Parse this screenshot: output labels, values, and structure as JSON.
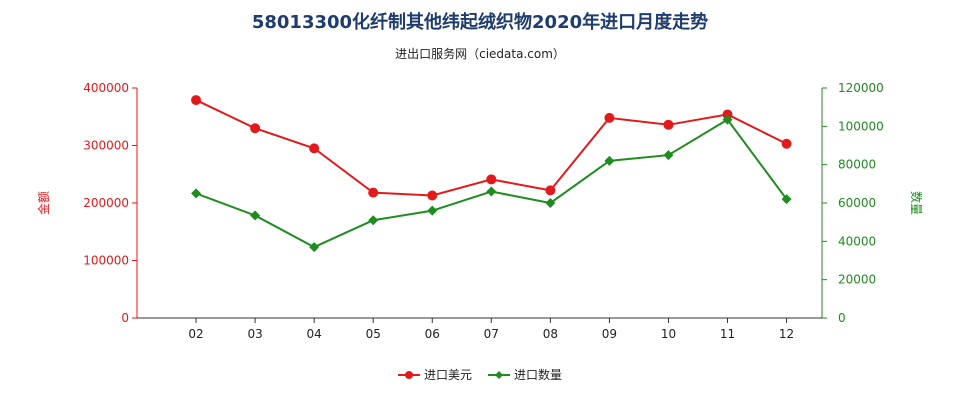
{
  "chart_data": {
    "type": "line",
    "title": "58013300化纤制其他纬起绒织物2020年进口月度走势",
    "subtitle": "进出口服务网（ciedata.com）",
    "categories": [
      "02",
      "03",
      "04",
      "05",
      "06",
      "07",
      "08",
      "09",
      "10",
      "11",
      "12"
    ],
    "y_left": {
      "label": "金额",
      "ylim": [
        0,
        400000
      ],
      "ticks": [
        "0",
        "100000",
        "200000",
        "300000",
        "400000"
      ],
      "color": "#e31a1c"
    },
    "y_right": {
      "label": "数量",
      "ylim": [
        0,
        120000
      ],
      "ticks": [
        "0",
        "20000",
        "40000",
        "60000",
        "80000",
        "100000",
        "120000"
      ],
      "color": "#1f8c1f"
    },
    "series": [
      {
        "name": "进口美元",
        "axis": "left",
        "color": "#e31a1c",
        "marker": "circle",
        "values": [
          379000,
          330000,
          295000,
          218000,
          213000,
          241000,
          222000,
          348000,
          336000,
          354000,
          303000
        ]
      },
      {
        "name": "进口数量",
        "axis": "right",
        "color": "#1f8c1f",
        "marker": "diamond",
        "values": [
          65000,
          53500,
          37000,
          51000,
          56000,
          66000,
          60000,
          82000,
          85000,
          103500,
          62000
        ]
      }
    ],
    "legend_position": "bottom-center",
    "grid": false
  }
}
